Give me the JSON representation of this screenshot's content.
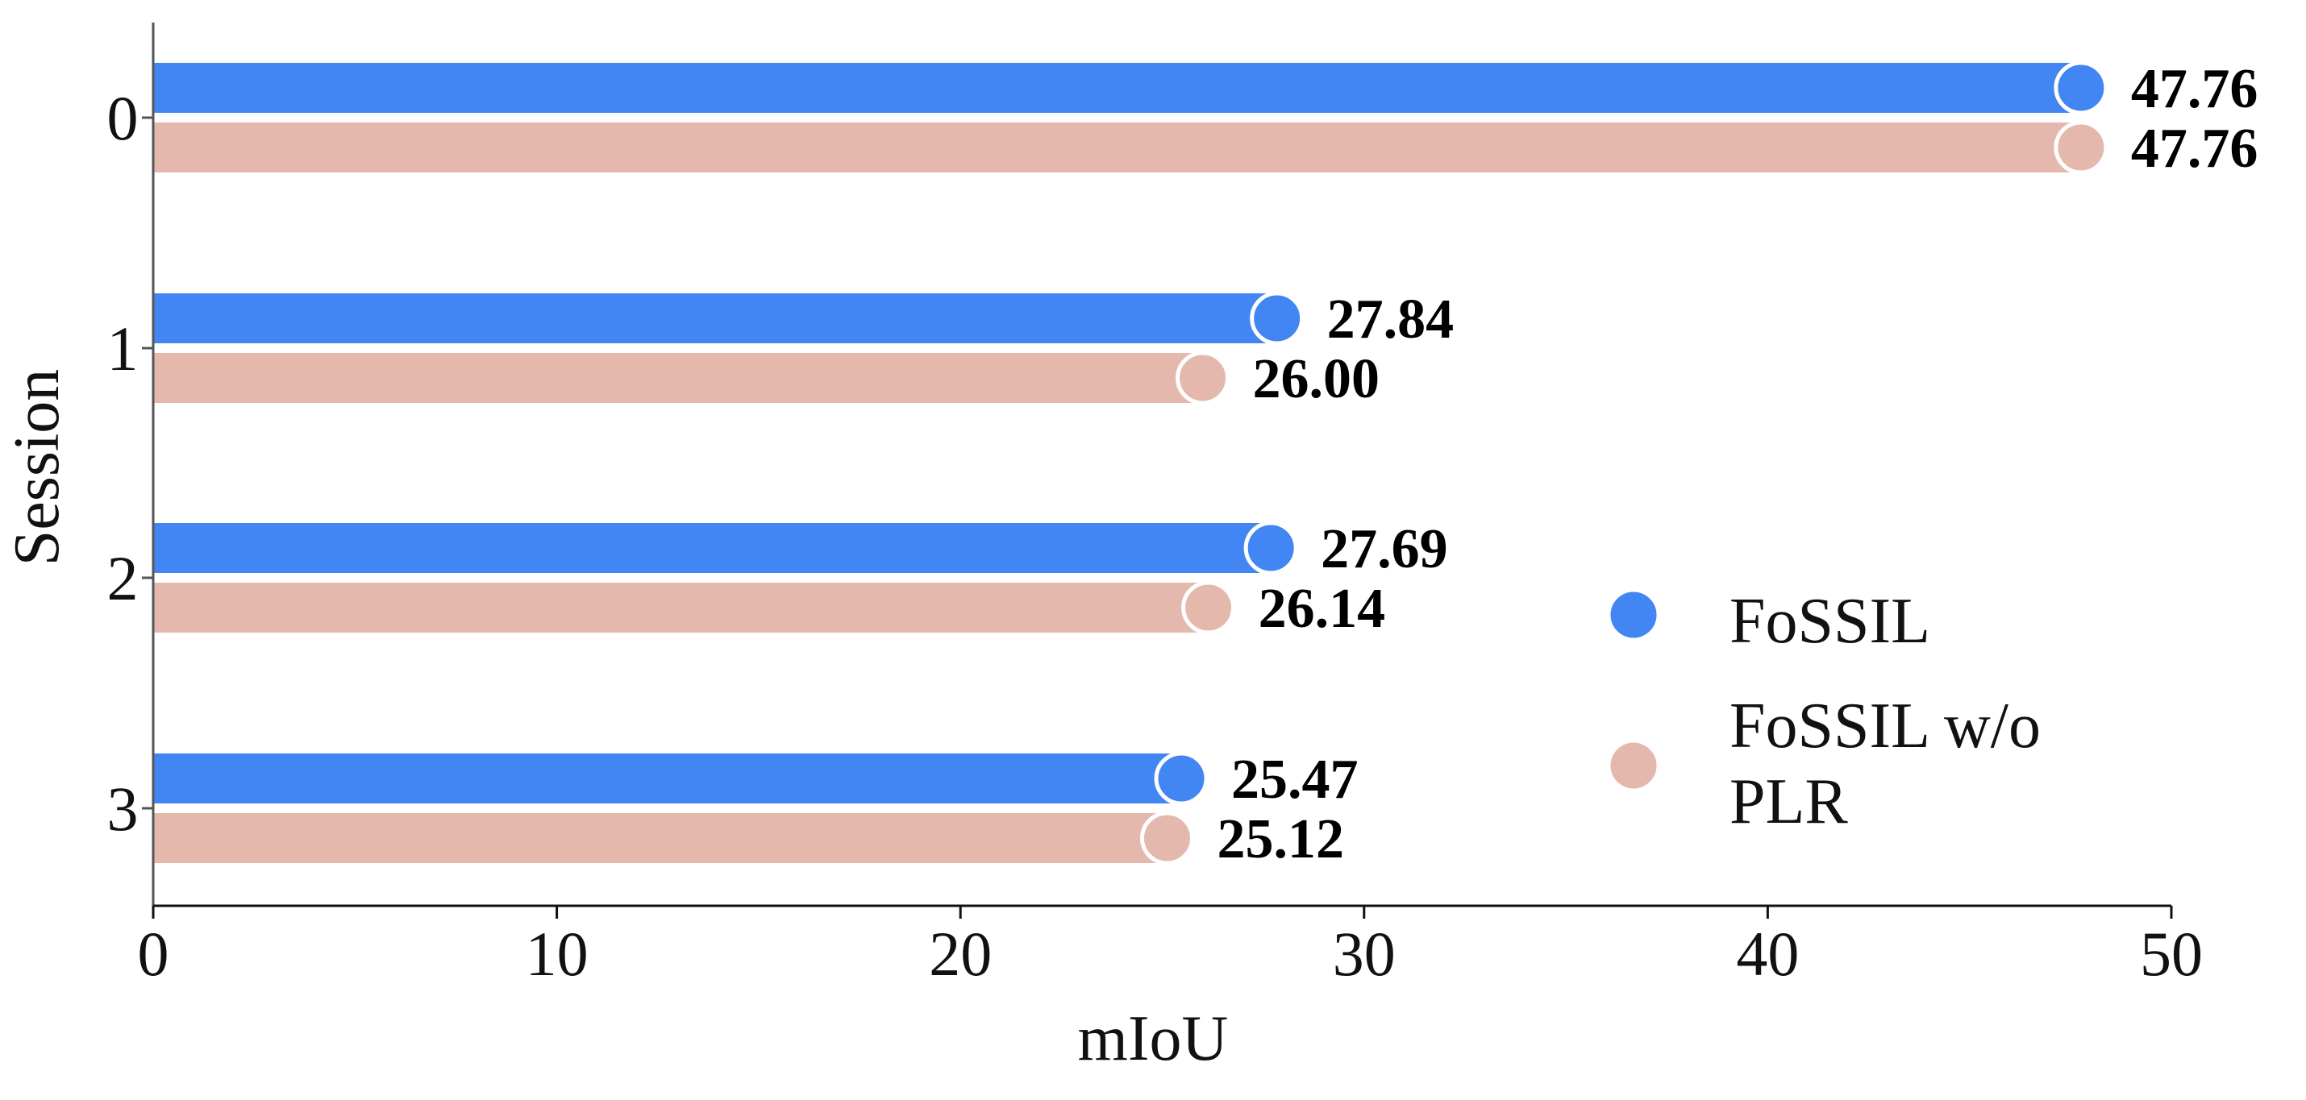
{
  "chart_data": {
    "type": "bar",
    "orientation": "horizontal",
    "categories": [
      "0",
      "1",
      "2",
      "3"
    ],
    "series": [
      {
        "name": "FoSSIL",
        "color": "#4286f4",
        "values": [
          47.76,
          27.84,
          27.69,
          25.47
        ],
        "value_labels": [
          "47.76",
          "27.84",
          "27.69",
          "25.47"
        ]
      },
      {
        "name": "FoSSIL w/o PLR",
        "color": "#e5b8ad",
        "values": [
          47.76,
          26.0,
          26.14,
          25.12
        ],
        "value_labels": [
          "47.76",
          "26.00",
          "26.14",
          "25.12"
        ]
      }
    ],
    "xlabel": "mIoU",
    "ylabel": "Session",
    "xlim": [
      0,
      50
    ],
    "xticks": [
      0,
      10,
      20,
      30,
      40,
      50
    ],
    "xtick_labels": [
      "0",
      "10",
      "20",
      "30",
      "40",
      "50"
    ],
    "grid": false,
    "legend": {
      "placement": "lower-right",
      "entries": [
        {
          "lines": [
            "FoSSIL"
          ]
        },
        {
          "lines": [
            "FoSSIL w/o",
            "PLR"
          ]
        }
      ]
    },
    "marker": "circle at bar end"
  }
}
